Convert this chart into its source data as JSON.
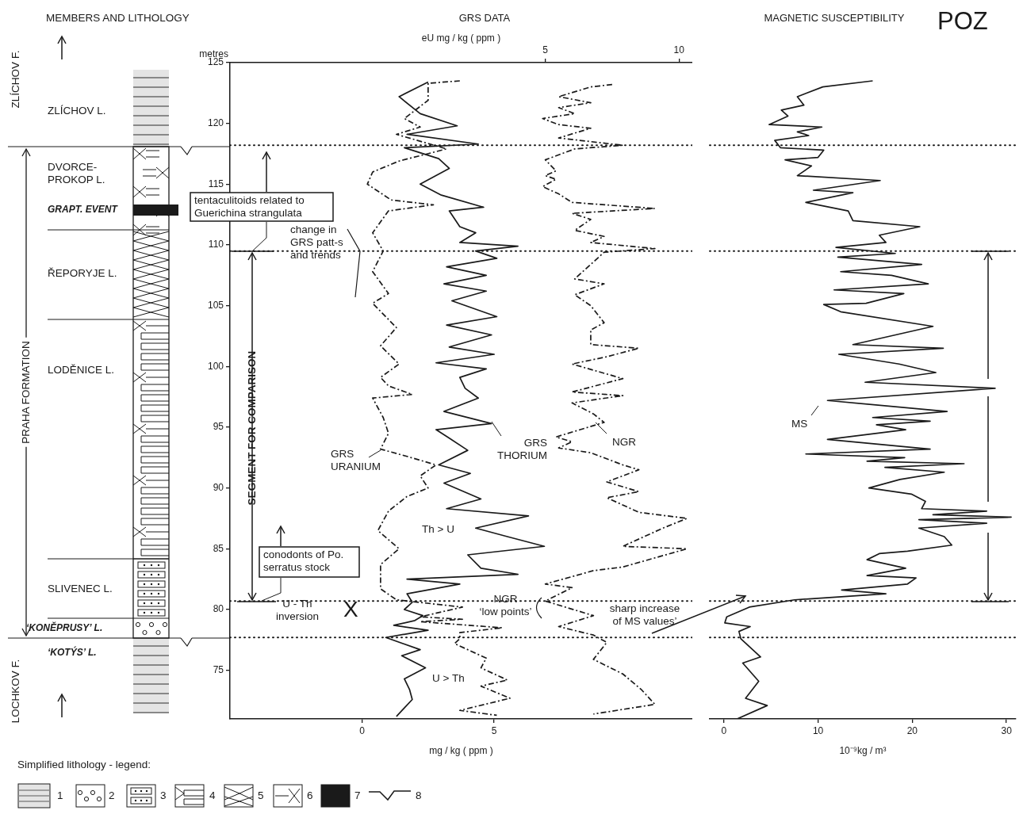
{
  "chart_data": [
    {
      "type": "line",
      "orientation": "horizontal",
      "title": "GRS DATA",
      "ylabel": "metres",
      "xlabel": "mg / kg ( ppm )",
      "x2label": "eU mg / kg ( ppm )",
      "xlim": [
        -5,
        12.5
      ],
      "xticks": [
        0,
        5
      ],
      "x2lim": [
        -6.8,
        10.5
      ],
      "x2ticks": [
        5,
        10
      ],
      "ylim": [
        71,
        125
      ],
      "yticks": [
        75,
        80,
        85,
        90,
        95,
        100,
        105,
        110,
        115,
        120,
        125
      ],
      "marker": "none",
      "ref_lines": [
        {
          "axis": "y",
          "value": 118.2,
          "line_style": "dotted"
        },
        {
          "axis": "y",
          "value": 109.5,
          "line_style": "dotted"
        },
        {
          "axis": "y",
          "value": 80.7,
          "line_style": "dotted"
        },
        {
          "axis": "y",
          "value": 77.7,
          "line_style": "dotted"
        }
      ],
      "annotations": [
        "MEMBERS AND LITHOLOGY",
        "ZLÍCHOV F.",
        "PRAHA FORMATION",
        "LOCHKOV F.",
        "ZLÍCHOV L.",
        "DVORCE-\nPROKOP L.",
        "GRAPT. EVENT",
        "ŘEPORYJE L.",
        "LODĚNICE L.",
        "SLIVENEC L.",
        "‘KONĚPRUSY’ L.",
        "‘KOTÝS’ L.",
        "Simplified lithology - legend:",
        "1",
        "2",
        "3",
        "4",
        "5",
        "6",
        "7",
        "8",
        "tentaculitoids related to\nGuerichina strangulata",
        "change in\nGRS patt-s\nand trends",
        "SEGMENT FOR COMPARISON",
        "conodonts of Po.\nserratus stock",
        "U - Th\ninversion",
        "X",
        "GRS\nURANIUM",
        "GRS\nTHORIUM",
        "NGR",
        "Th > U",
        "U > Th",
        "NGR\n‘low points’"
      ],
      "series": [
        {
          "color": "#1a1a1a",
          "line_style": "dashed",
          "x": [
            123.5,
            123.3,
            121.9,
            120.4,
            119.7,
            119.1,
            117.9,
            116.9,
            116.0,
            115.0,
            113.7,
            113.3,
            112.8,
            111.0,
            109.5,
            107.8,
            106.0,
            105.2,
            103.2,
            101.7,
            100.2,
            99.1,
            98.4,
            97.7,
            97.4,
            95.8,
            94.5,
            93.2,
            92.6,
            91.9,
            91.0,
            90.0,
            89.3,
            88.1,
            86.5,
            85.0,
            83.7,
            81.7,
            80.8,
            80.2,
            79.4,
            79.2,
            79.0,
            78.5,
            78.1,
            77.6,
            77.2,
            76.0,
            75.2,
            74.2,
            73.7,
            72.7,
            71.7,
            71.3
          ],
          "values": [
            3.7,
            2.5,
            2.5,
            1.6,
            2.2,
            1.3,
            3.2,
            1.4,
            0.4,
            0.2,
            1.1,
            2.7,
            1.0,
            0.4,
            0.8,
            0.4,
            1.0,
            0.4,
            1.3,
            0.7,
            1.4,
            0.7,
            1.0,
            1.9,
            0.4,
            0.8,
            1.0,
            0.7,
            1.7,
            2.8,
            2.2,
            2.5,
            1.7,
            1.0,
            0.6,
            1.4,
            0.7,
            0.7,
            1.3,
            3.8,
            2.2,
            3.8,
            2.2,
            5.3,
            3.7,
            3.7,
            3.5,
            4.7,
            4.5,
            5.5,
            4.5,
            5.6,
            3.7,
            5.1
          ]
        },
        {
          "color": "#1a1a1a",
          "line_style": "solid",
          "x": [
            123.4,
            122.2,
            120.8,
            119.8,
            119.1,
            118.3,
            118.0,
            117.1,
            116.3,
            115.0,
            114.1,
            113.1,
            112.8,
            111.5,
            111.0,
            110.2,
            109.9,
            109.5,
            108.9,
            108.2,
            107.5,
            106.8,
            106.2,
            105.4,
            104.1,
            103.4,
            102.6,
            101.6,
            101.0,
            100.3,
            99.8,
            99.1,
            98.2,
            97.4,
            96.3,
            95.3,
            94.8,
            94.1,
            93.1,
            91.9,
            91.2,
            90.4,
            89.1,
            88.3,
            87.7,
            86.7,
            86.0,
            85.2,
            84.5,
            83.4,
            82.9,
            82.5,
            82.1,
            81.3,
            80.6,
            80.0,
            79.5,
            79.1,
            78.7,
            78.3,
            77.7,
            76.7,
            76.2,
            75.2,
            74.3,
            73.4,
            72.6,
            71.9,
            71.2
          ],
          "values": [
            2.5,
            1.4,
            2.2,
            3.6,
            1.7,
            4.4,
            1.6,
            2.9,
            3.3,
            2.2,
            3.0,
            4.6,
            3.3,
            3.7,
            4.3,
            3.7,
            5.9,
            4.3,
            5.1,
            3.2,
            4.7,
            3.1,
            4.7,
            3.4,
            5.1,
            3.2,
            4.9,
            3.3,
            5.0,
            2.8,
            4.7,
            3.7,
            3.9,
            4.4,
            3.1,
            4.9,
            2.8,
            3.3,
            4.0,
            2.9,
            4.1,
            3.1,
            4.5,
            3.2,
            6.3,
            4.3,
            5.5,
            6.9,
            4.0,
            4.5,
            5.9,
            1.7,
            3.7,
            1.7,
            1.9,
            1.6,
            2.3,
            2.0,
            1.2,
            2.5,
            0.9,
            2.2,
            1.5,
            2.4,
            1.6,
            1.8,
            1.9,
            1.6,
            1.3
          ]
        },
        {
          "color": "#1a1a1a",
          "line_style": "dashed",
          "axis": "x2",
          "x": [
            123.2,
            123.0,
            122.2,
            121.7,
            121.3,
            120.8,
            120.4,
            119.9,
            119.6,
            118.8,
            118.2,
            117.9,
            117.0,
            116.1,
            115.7,
            115.4,
            114.8,
            114.2,
            113.5,
            113.0,
            112.6,
            112.1,
            111.2,
            110.7,
            110.2,
            109.7,
            109.4,
            107.2,
            106.8,
            105.9,
            105.0,
            103.6,
            103.0,
            101.8,
            101.5,
            100.8,
            100.2,
            99.0,
            97.9,
            97.6,
            97.0,
            96.1,
            95.4,
            94.2,
            93.8,
            93.3,
            92.9,
            91.9,
            91.5,
            90.5,
            89.7,
            89.2,
            88.0,
            87.5,
            86.7,
            85.2,
            85.0,
            83.5,
            83.2,
            82.1,
            81.8,
            80.7,
            79.5,
            78.6,
            77.9,
            77.3,
            75.9,
            74.7,
            73.4,
            72.2,
            71.4
          ],
          "values": [
            7.5,
            6.7,
            5.5,
            6.7,
            5.5,
            6.1,
            4.9,
            5.5,
            6.7,
            5.5,
            7.9,
            6.1,
            5.0,
            5.4,
            5.0,
            5.4,
            4.9,
            5.5,
            6.0,
            9.1,
            6.0,
            6.7,
            6.1,
            7.2,
            6.7,
            9.1,
            7.2,
            6.1,
            7.2,
            6.1,
            6.7,
            7.2,
            6.7,
            6.7,
            8.5,
            7.3,
            6.0,
            7.9,
            6.0,
            7.9,
            6.0,
            6.8,
            7.2,
            5.4,
            6.0,
            5.5,
            6.7,
            7.9,
            8.5,
            7.3,
            8.5,
            7.3,
            8.5,
            10.3,
            9.4,
            7.9,
            10.3,
            7.9,
            6.8,
            5.0,
            6.0,
            5.0,
            6.8,
            5.5,
            6.8,
            7.3,
            6.8,
            7.9,
            8.6,
            9.1,
            6.8
          ]
        }
      ]
    },
    {
      "type": "line",
      "orientation": "horizontal",
      "title": "MAGNETIC SUSCEPTIBILITY",
      "xlabel": "10⁻⁹kg / m³",
      "xlim": [
        -1.5,
        31
      ],
      "xticks": [
        0,
        10,
        20,
        30
      ],
      "ylim": [
        71,
        125
      ],
      "tick_labels": "x",
      "marker": "none",
      "ref_lines": [
        {
          "axis": "y",
          "value": 118.2,
          "line_style": "dotted"
        },
        {
          "axis": "y",
          "value": 109.5,
          "line_style": "dotted"
        },
        {
          "axis": "y",
          "value": 80.7,
          "line_style": "dotted"
        },
        {
          "axis": "y",
          "value": 77.7,
          "line_style": "dotted"
        }
      ],
      "annotations": [
        "POZ",
        "sharp increase\nof MS values’",
        "MS"
      ],
      "series": [
        {
          "color": "#1a1a1a",
          "line_style": "solid",
          "x": [
            123.5,
            123.0,
            122.2,
            121.5,
            121.1,
            120.6,
            119.9,
            119.7,
            119.3,
            119.0,
            118.6,
            118.0,
            117.8,
            117.2,
            117.0,
            116.5,
            115.7,
            115.3,
            114.5,
            114.3,
            113.5,
            112.8,
            112.0,
            111.5,
            110.8,
            110.2,
            109.8,
            109.3,
            109.0,
            108.4,
            107.8,
            107.5,
            106.8,
            106.3,
            106.0,
            105.2,
            105.1,
            104.5,
            103.3,
            101.8,
            101.5,
            101.0,
            100.2,
            99.5,
            98.7,
            98.2,
            97.2,
            96.3,
            95.8,
            95.5,
            95.2,
            94.8,
            94.0,
            93.2,
            92.8,
            92.5,
            92.2,
            92.0,
            91.7,
            91.3,
            90.7,
            90.0,
            89.5,
            88.9,
            88.3,
            88.1,
            87.8,
            87.6,
            87.4,
            87.1,
            86.7,
            86.0,
            85.3,
            84.8,
            84.6,
            84.1,
            83.4,
            82.8,
            82.6,
            82.1,
            81.6,
            81.3,
            80.8,
            80.2,
            79.4,
            78.9,
            78.6,
            78.2,
            77.6,
            76.1,
            75.6,
            74.1,
            72.7,
            72.1,
            71.0
          ],
          "values": [
            15.8,
            10.5,
            7.8,
            8.5,
            6.1,
            6.8,
            4.8,
            10.4,
            7.8,
            9.0,
            5.4,
            6.0,
            10.6,
            10.0,
            6.5,
            9.3,
            7.8,
            16.6,
            9.5,
            13.7,
            8.7,
            13.2,
            13.7,
            20.8,
            16.5,
            17.2,
            11.9,
            18.2,
            12.1,
            21.0,
            12.4,
            17.8,
            21.7,
            11.7,
            19.1,
            15.1,
            10.6,
            12.4,
            22.2,
            13.7,
            23.3,
            12.2,
            18.6,
            22.5,
            15.0,
            28.8,
            11.0,
            23.7,
            15.8,
            21.9,
            16.2,
            19.3,
            11.0,
            21.9,
            8.7,
            19.2,
            15.2,
            25.5,
            17.1,
            23.4,
            18.7,
            15.4,
            19.9,
            21.4,
            21.0,
            27.9,
            22.2,
            30.5,
            20.7,
            27.9,
            20.7,
            23.4,
            24.2,
            19.5,
            16.5,
            15.2,
            19.3,
            15.2,
            20.4,
            19.5,
            12.5,
            17.2,
            7.5,
            2.7,
            0.3,
            0.1,
            2.8,
            1.6,
            1.8,
            3.9,
            2.0,
            3.7,
            2.3,
            4.6,
            1.4
          ]
        }
      ]
    }
  ]
}
